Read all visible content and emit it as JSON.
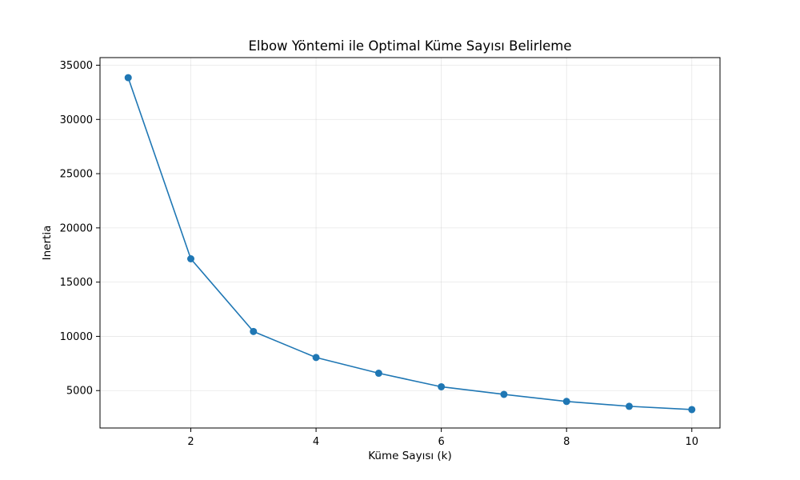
{
  "chart_data": {
    "type": "line",
    "title": "Elbow Yöntemi ile Optimal Küme Sayısı Belirleme",
    "xlabel": "Küme Sayısı (k)",
    "ylabel": "Inertia",
    "x": [
      1,
      2,
      3,
      4,
      5,
      6,
      7,
      8,
      9,
      10
    ],
    "series": [
      {
        "values": [
          33850,
          17150,
          10450,
          8050,
          6600,
          5350,
          4650,
          4000,
          3550,
          3250
        ],
        "color": "#1f77b4",
        "marker": "circle"
      }
    ],
    "xlim": [
      0.55,
      10.45
    ],
    "ylim": [
      1550,
      35700
    ],
    "xticks": [
      2,
      4,
      6,
      8,
      10
    ],
    "xtick_labels": [
      "2",
      "4",
      "6",
      "8",
      "10"
    ],
    "yticks": [
      5000,
      10000,
      15000,
      20000,
      25000,
      30000,
      35000
    ],
    "ytick_labels": [
      "5000",
      "10000",
      "15000",
      "20000",
      "25000",
      "30000",
      "35000"
    ],
    "grid": true,
    "legend": false
  }
}
